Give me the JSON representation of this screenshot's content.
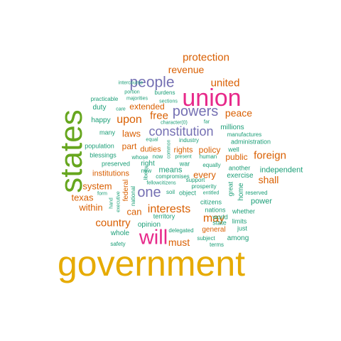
{
  "palette": {
    "green": "#1b9e77",
    "orange": "#d95f02",
    "purple": "#7570b3",
    "pink": "#e7298a",
    "lime": "#66a61e",
    "gold": "#e6ab02"
  },
  "words": [
    {
      "text": "government",
      "color": "#e6ab02"
    },
    {
      "text": "states",
      "color": "#66a61e"
    },
    {
      "text": "union",
      "color": "#e7298a"
    },
    {
      "text": "will",
      "color": "#e7298a"
    },
    {
      "text": "people",
      "color": "#7570b3"
    },
    {
      "text": "powers",
      "color": "#7570b3"
    },
    {
      "text": "constitution",
      "color": "#7570b3"
    },
    {
      "text": "one",
      "color": "#7570b3"
    },
    {
      "text": "protection",
      "color": "#d95f02"
    },
    {
      "text": "revenue",
      "color": "#d95f02"
    },
    {
      "text": "united",
      "color": "#d95f02"
    },
    {
      "text": "upon",
      "color": "#d95f02"
    },
    {
      "text": "free",
      "color": "#d95f02"
    },
    {
      "text": "peace",
      "color": "#d95f02"
    },
    {
      "text": "interests",
      "color": "#d95f02"
    },
    {
      "text": "country",
      "color": "#d95f02"
    },
    {
      "text": "may",
      "color": "#d95f02"
    },
    {
      "text": "foreign",
      "color": "#d95f02"
    },
    {
      "text": "shall",
      "color": "#d95f02"
    },
    {
      "text": "must",
      "color": "#d95f02"
    },
    {
      "text": "laws",
      "color": "#d95f02"
    },
    {
      "text": "extended",
      "color": "#d95f02"
    },
    {
      "text": "part",
      "color": "#d95f02"
    },
    {
      "text": "duties",
      "color": "#d95f02"
    },
    {
      "text": "rights",
      "color": "#d95f02"
    },
    {
      "text": "policy",
      "color": "#d95f02"
    },
    {
      "text": "public",
      "color": "#d95f02"
    },
    {
      "text": "system",
      "color": "#d95f02"
    },
    {
      "text": "texas",
      "color": "#d95f02"
    },
    {
      "text": "within",
      "color": "#d95f02"
    },
    {
      "text": "can",
      "color": "#d95f02"
    },
    {
      "text": "every",
      "color": "#d95f02"
    },
    {
      "text": "institutions",
      "color": "#d95f02"
    },
    {
      "text": "means",
      "color": "#1b9e77"
    },
    {
      "text": "duty",
      "color": "#1b9e77"
    },
    {
      "text": "happy",
      "color": "#1b9e77"
    },
    {
      "text": "many",
      "color": "#1b9e77"
    },
    {
      "text": "population",
      "color": "#1b9e77"
    },
    {
      "text": "blessings",
      "color": "#1b9e77"
    },
    {
      "text": "preserved",
      "color": "#1b9e77"
    },
    {
      "text": "practicable",
      "color": "#1b9e77"
    },
    {
      "text": "care",
      "color": "#1b9e77"
    },
    {
      "text": "majorities",
      "color": "#1b9e77"
    },
    {
      "text": "sections",
      "color": "#1b9e77"
    },
    {
      "text": "burdens",
      "color": "#1b9e77"
    },
    {
      "text": "portion",
      "color": "#1b9e77"
    },
    {
      "text": "intercourse",
      "color": "#1b9e77"
    },
    {
      "text": "character(0)",
      "color": "#1b9e77"
    },
    {
      "text": "far",
      "color": "#1b9e77"
    },
    {
      "text": "millions",
      "color": "#1b9e77"
    },
    {
      "text": "manufactures",
      "color": "#1b9e77"
    },
    {
      "text": "administration",
      "color": "#1b9e77"
    },
    {
      "text": "well",
      "color": "#1b9e77"
    },
    {
      "text": "industry",
      "color": "#1b9e77"
    },
    {
      "text": "equal",
      "color": "#1b9e77"
    },
    {
      "text": "common",
      "color": "#1b9e77"
    },
    {
      "text": "whose",
      "color": "#1b9e77"
    },
    {
      "text": "now",
      "color": "#1b9e77"
    },
    {
      "text": "present",
      "color": "#1b9e77"
    },
    {
      "text": "human",
      "color": "#1b9e77"
    },
    {
      "text": "right",
      "color": "#1b9e77"
    },
    {
      "text": "war",
      "color": "#1b9e77"
    },
    {
      "text": "equally",
      "color": "#1b9e77"
    },
    {
      "text": "compromises",
      "color": "#1b9e77"
    },
    {
      "text": "new",
      "color": "#1b9e77"
    },
    {
      "text": "support",
      "color": "#1b9e77"
    },
    {
      "text": "liberty",
      "color": "#1b9e77"
    },
    {
      "text": "fellowcitizens",
      "color": "#1b9e77"
    },
    {
      "text": "federal",
      "color": "#d95f02"
    },
    {
      "text": "form",
      "color": "#1b9e77"
    },
    {
      "text": "executive",
      "color": "#1b9e77"
    },
    {
      "text": "national",
      "color": "#1b9e77"
    },
    {
      "text": "hand",
      "color": "#1b9e77"
    },
    {
      "text": "soil",
      "color": "#1b9e77"
    },
    {
      "text": "object",
      "color": "#1b9e77"
    },
    {
      "text": "entitled",
      "color": "#1b9e77"
    },
    {
      "text": "prosperity",
      "color": "#1b9e77"
    },
    {
      "text": "great",
      "color": "#1b9e77"
    },
    {
      "text": "home",
      "color": "#1b9e77"
    },
    {
      "text": "another",
      "color": "#1b9e77"
    },
    {
      "text": "exercise",
      "color": "#1b9e77"
    },
    {
      "text": "independent",
      "color": "#1b9e77"
    },
    {
      "text": "reserved",
      "color": "#1b9e77"
    },
    {
      "text": "power",
      "color": "#1b9e77"
    },
    {
      "text": "citizens",
      "color": "#1b9e77"
    },
    {
      "text": "nations",
      "color": "#1b9e77"
    },
    {
      "text": "whether",
      "color": "#1b9e77"
    },
    {
      "text": "territory",
      "color": "#1b9e77"
    },
    {
      "text": "world",
      "color": "#1b9e77"
    },
    {
      "text": "limits",
      "color": "#1b9e77"
    },
    {
      "text": "state",
      "color": "#1b9e77"
    },
    {
      "text": "just",
      "color": "#1b9e77"
    },
    {
      "text": "whole",
      "color": "#1b9e77"
    },
    {
      "text": "opinion",
      "color": "#1b9e77"
    },
    {
      "text": "delegated",
      "color": "#1b9e77"
    },
    {
      "text": "general",
      "color": "#d95f02"
    },
    {
      "text": "among",
      "color": "#1b9e77"
    },
    {
      "text": "subject",
      "color": "#1b9e77"
    },
    {
      "text": "terms",
      "color": "#1b9e77"
    },
    {
      "text": "safety",
      "color": "#1b9e77"
    }
  ]
}
